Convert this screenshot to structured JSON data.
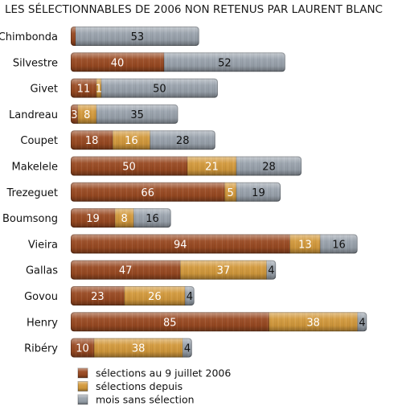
{
  "chart_data": {
    "type": "bar",
    "orientation": "horizontal",
    "stacked": true,
    "title": "LES SÉLECTIONNABLES DE 2006 NON RETENUS PAR LAURENT BLANC",
    "categories": [
      "Chimbonda",
      "Silvestre",
      "Givet",
      "Landreau",
      "Coupet",
      "Makelele",
      "Trezeguet",
      "Boumsong",
      "Vieira",
      "Gallas",
      "Govou",
      "Henry",
      "Ribéry"
    ],
    "series": [
      {
        "name": "sélections au 9 juillet 2006",
        "color": "#9a4a22",
        "values": [
          1,
          40,
          11,
          3,
          18,
          50,
          66,
          19,
          94,
          47,
          23,
          85,
          10
        ],
        "labels": [
          "",
          "40",
          "11",
          "3",
          "18",
          "50",
          "66",
          "19",
          "94",
          "47",
          "23",
          "85",
          "10"
        ]
      },
      {
        "name": "sélections depuis",
        "color": "#d49a3c",
        "values": [
          0,
          0,
          1,
          8,
          16,
          21,
          5,
          8,
          13,
          37,
          26,
          38,
          38
        ],
        "labels": [
          "",
          "",
          "1",
          "8",
          "16",
          "21",
          "5",
          "8",
          "13",
          "37",
          "26",
          "38",
          "38"
        ]
      },
      {
        "name": "mois sans sélection",
        "color": "#9aa3ad",
        "values": [
          53,
          52,
          50,
          35,
          28,
          28,
          19,
          16,
          16,
          4,
          4,
          4,
          4
        ],
        "labels": [
          "53",
          "52",
          "50",
          "35",
          "28",
          "28",
          "19",
          "16",
          "16",
          "4",
          "4",
          "4",
          "4"
        ]
      }
    ],
    "legend_position": "bottom-left",
    "grid": false
  }
}
